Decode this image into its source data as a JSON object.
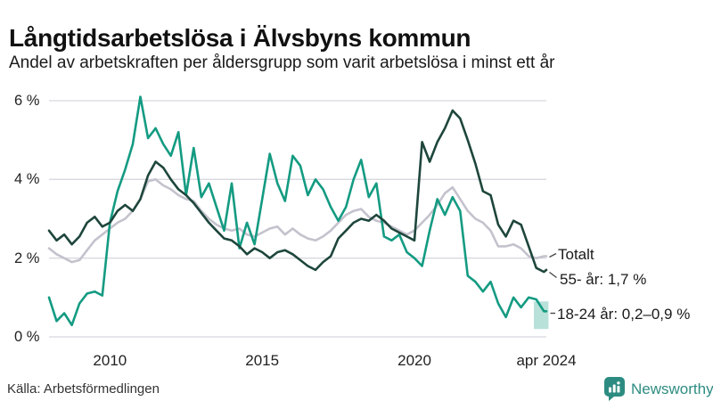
{
  "title": "Långtidsarbetslösa i Älvsbyns kommun",
  "subtitle": "Andel av arbetskraften per åldersgrupp som varit arbetslösa i minst ett år",
  "source": "Källa: Arbetsförmedlingen",
  "brand": {
    "name": "Newsworthy",
    "color": "#2d8c82"
  },
  "colors": {
    "grid": "#d8d8df",
    "text": "#1a1a1a",
    "connector": "#4a4a4a"
  },
  "chart_data": {
    "type": "line",
    "title": "Långtidsarbetslösa i Älvsbyns kommun",
    "subtitle": "Andel av arbetskraften per åldersgrupp som varit arbetslösa i minst ett år",
    "unit": "% av arbetskraften",
    "xlim": [
      2008,
      2024.33
    ],
    "ylim": [
      0,
      6.3
    ],
    "grid": "horizontal",
    "y_ticks": [
      {
        "v": 0,
        "label": "0 %"
      },
      {
        "v": 2,
        "label": "2 %"
      },
      {
        "v": 4,
        "label": "4 %"
      },
      {
        "v": 6,
        "label": "6 %"
      }
    ],
    "x_ticks": [
      {
        "x": 2010,
        "label": "2010"
      },
      {
        "x": 2015,
        "label": "2015"
      },
      {
        "x": 2020,
        "label": "2020"
      },
      {
        "x": 2024.33,
        "label": "apr 2024"
      }
    ],
    "x": [
      2008.0,
      2008.25,
      2008.5,
      2008.75,
      2009.0,
      2009.25,
      2009.5,
      2009.75,
      2010.0,
      2010.25,
      2010.5,
      2010.75,
      2011.0,
      2011.25,
      2011.5,
      2011.75,
      2012.0,
      2012.25,
      2012.5,
      2012.75,
      2013.0,
      2013.25,
      2013.5,
      2013.75,
      2014.0,
      2014.25,
      2014.5,
      2014.75,
      2015.0,
      2015.25,
      2015.5,
      2015.75,
      2016.0,
      2016.25,
      2016.5,
      2016.75,
      2017.0,
      2017.25,
      2017.5,
      2017.75,
      2018.0,
      2018.25,
      2018.5,
      2018.75,
      2019.0,
      2019.25,
      2019.5,
      2019.75,
      2020.0,
      2020.25,
      2020.5,
      2020.75,
      2021.0,
      2021.25,
      2021.5,
      2021.75,
      2022.0,
      2022.25,
      2022.5,
      2022.75,
      2023.0,
      2023.25,
      2023.5,
      2023.75,
      2024.0,
      2024.25,
      2024.33
    ],
    "series": [
      {
        "name": "Totalt",
        "end_label": "Totalt",
        "color": "#c4c2cd",
        "values": [
          2.25,
          2.1,
          2.0,
          1.9,
          1.95,
          2.2,
          2.45,
          2.6,
          2.75,
          2.9,
          3.0,
          3.2,
          3.5,
          3.95,
          4.0,
          3.85,
          3.75,
          3.6,
          3.5,
          3.45,
          3.2,
          3.0,
          2.85,
          2.75,
          2.7,
          2.75,
          2.6,
          2.55,
          2.65,
          2.75,
          2.8,
          2.6,
          2.75,
          2.6,
          2.5,
          2.45,
          2.55,
          2.7,
          2.9,
          3.1,
          3.2,
          3.25,
          3.05,
          2.95,
          2.9,
          2.8,
          2.7,
          2.6,
          2.7,
          2.9,
          3.1,
          3.35,
          3.65,
          3.8,
          3.5,
          3.2,
          3.0,
          2.9,
          2.7,
          2.3,
          2.3,
          2.35,
          2.25,
          2.05,
          2.0,
          2.05,
          2.05
        ]
      },
      {
        "name": "55- år",
        "end_label": "55- år: 1,7 %",
        "end_value": "1,7 %",
        "color": "#1e463c",
        "values": [
          2.7,
          2.45,
          2.6,
          2.35,
          2.55,
          2.9,
          3.05,
          2.8,
          2.9,
          3.2,
          3.35,
          3.2,
          3.5,
          4.1,
          4.45,
          4.3,
          4.0,
          3.75,
          3.6,
          3.4,
          3.15,
          2.9,
          2.7,
          2.5,
          2.45,
          2.3,
          2.1,
          2.25,
          2.15,
          2.0,
          2.15,
          2.2,
          2.1,
          1.95,
          1.8,
          1.7,
          1.9,
          2.05,
          2.5,
          2.7,
          2.9,
          3.0,
          2.95,
          3.1,
          2.95,
          2.75,
          2.65,
          2.55,
          2.45,
          4.95,
          4.45,
          4.95,
          5.3,
          5.75,
          5.55,
          5.0,
          4.4,
          3.7,
          3.6,
          2.85,
          2.55,
          2.95,
          2.85,
          2.3,
          1.75,
          1.65,
          1.7
        ]
      },
      {
        "name": "18-24 år",
        "end_label": "18-24 år: 0,2–0,9 %",
        "end_value": "0,2–0,9 %",
        "color": "#149b82",
        "values": [
          1.0,
          0.4,
          0.6,
          0.3,
          0.85,
          1.1,
          1.15,
          1.05,
          2.9,
          3.7,
          4.25,
          4.9,
          6.1,
          5.05,
          5.3,
          4.9,
          4.6,
          5.2,
          3.6,
          4.8,
          3.55,
          3.9,
          3.3,
          2.7,
          3.9,
          2.25,
          2.9,
          2.35,
          3.5,
          4.65,
          3.9,
          3.45,
          4.6,
          4.35,
          3.6,
          4.0,
          3.75,
          3.3,
          2.95,
          3.3,
          4.0,
          4.5,
          3.55,
          3.9,
          2.55,
          2.45,
          2.6,
          2.15,
          2.0,
          1.8,
          2.7,
          3.5,
          3.1,
          3.55,
          3.2,
          1.55,
          1.4,
          1.15,
          1.4,
          0.85,
          0.5,
          1.0,
          0.75,
          1.0,
          0.95,
          0.65,
          0.65
        ]
      }
    ],
    "highlight_band": {
      "series": "18-24 år",
      "x0": 2023.92,
      "x1": 2024.4,
      "y0": 0.2,
      "y1": 0.9,
      "color": "#149b82",
      "opacity": 0.3
    },
    "legend_position": "right-of-line-ends"
  }
}
